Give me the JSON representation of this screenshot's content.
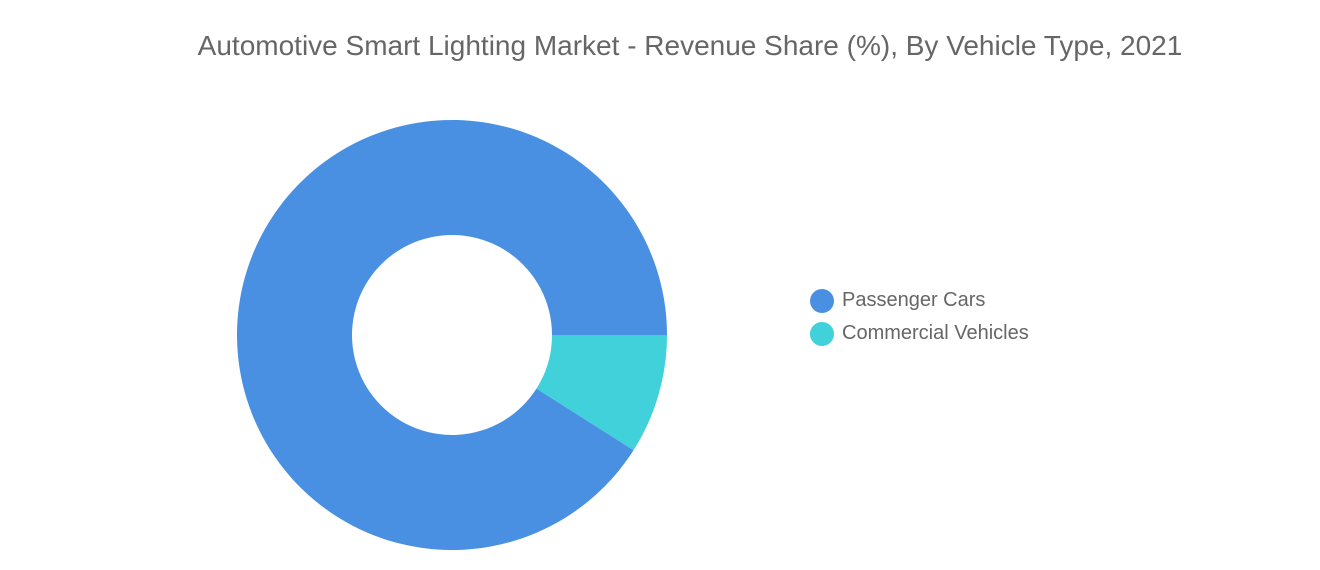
{
  "chart_data": {
    "type": "pie",
    "title": "Automotive Smart Lighting Market - Revenue Share (%), By Vehicle Type, 2021",
    "donut": true,
    "categories": [
      "Passenger Cars",
      "Commercial Vehicles"
    ],
    "values": [
      91,
      9
    ],
    "colors": [
      "#4a90e2",
      "#40d1da"
    ],
    "legend_position": "right"
  }
}
